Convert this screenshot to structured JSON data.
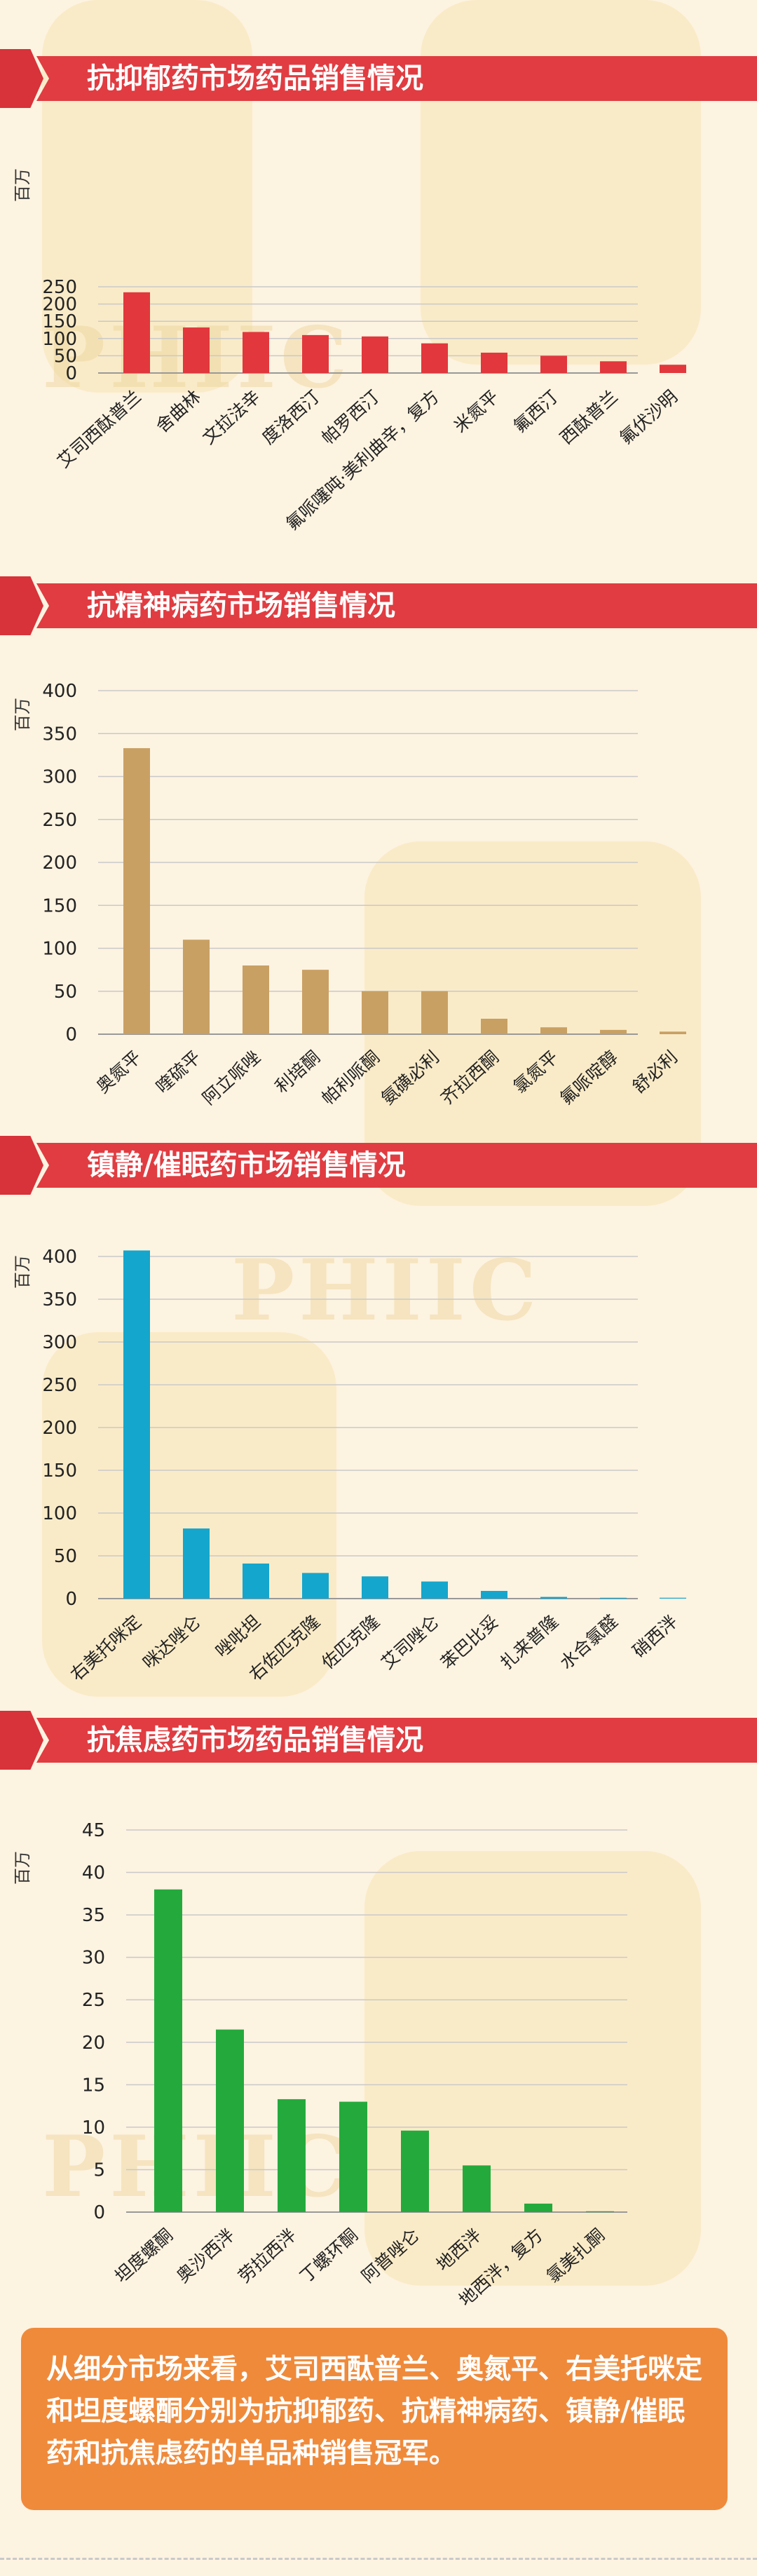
{
  "sections": [
    {
      "title": "抗抑郁药市场药品销售情况",
      "unit": "百万",
      "color": "#e2373c",
      "chart": {
        "type": "bar",
        "categories": [
          "艾司西酞普兰",
          "舍曲林",
          "文拉法辛",
          "度洛西汀",
          "帕罗西汀",
          "氟哌噻吨·美利曲辛，复方",
          "米氮平",
          "氟西汀",
          "西酞普兰",
          "氟伏沙明"
        ],
        "values": [
          234,
          132,
          119,
          110,
          106,
          86,
          59,
          50,
          34,
          24
        ],
        "yticks": [
          0,
          50,
          100,
          150,
          200,
          250
        ],
        "ylim": [
          0,
          250
        ]
      }
    },
    {
      "title": "抗精神病药市场销售情况",
      "unit": "百万",
      "color": "#c9a063",
      "chart": {
        "type": "bar",
        "categories": [
          "奥氮平",
          "喹硫平",
          "阿立哌唑",
          "利培酮",
          "帕利哌酮",
          "氨磺必利",
          "齐拉西酮",
          "氯氮平",
          "氟哌啶醇",
          "舒必利"
        ],
        "values": [
          333,
          110,
          80,
          75,
          50,
          50,
          18,
          8,
          5,
          3
        ],
        "yticks": [
          0,
          50,
          100,
          150,
          200,
          250,
          300,
          350,
          400
        ],
        "ylim": [
          0,
          400
        ]
      }
    },
    {
      "title": "镇静/催眠药市场销售情况",
      "unit": "百万",
      "color": "#14a6cc",
      "chart": {
        "type": "bar",
        "categories": [
          "右美托咪定",
          "咪达唑仑",
          "唑吡坦",
          "右佐匹克隆",
          "佐匹克隆",
          "艾司唑仑",
          "苯巴比妥",
          "扎来普隆",
          "水合氯醛",
          "硝西泮"
        ],
        "values": [
          407,
          82,
          41,
          30,
          26,
          20,
          9,
          2,
          1,
          1
        ],
        "yticks": [
          0,
          50,
          100,
          150,
          200,
          250,
          300,
          350,
          400
        ],
        "ylim": [
          0,
          400
        ]
      }
    },
    {
      "title": "抗焦虑药市场药品销售情况",
      "unit": "百万",
      "color": "#24aa3c",
      "chart": {
        "type": "bar",
        "categories": [
          "坦度螺酮",
          "奥沙西泮",
          "劳拉西泮",
          "丁螺环酮",
          "阿普唑仑",
          "地西泮",
          "地西泮，复方",
          "氯美扎酮"
        ],
        "values": [
          38,
          21.5,
          13.3,
          13,
          9.6,
          5.5,
          1,
          0.1
        ],
        "yticks": [
          0,
          5,
          10,
          15,
          20,
          25,
          30,
          35,
          40,
          45
        ],
        "ylim": [
          0,
          45
        ]
      }
    }
  ],
  "summary": "从细分市场来看，艾司西酞普兰、奥氮平、右美托咪定和坦度螺酮分别为抗抑郁药、抗精神病药、镇静/催眠药和抗焦虑药的单品种销售冠军。",
  "chart_data": [
    {
      "type": "bar",
      "title": "抗抑郁药市场药品销售情况",
      "ylabel": "百万",
      "categories": [
        "艾司西酞普兰",
        "舍曲林",
        "文拉法辛",
        "度洛西汀",
        "帕罗西汀",
        "氟哌噻吨·美利曲辛，复方",
        "米氮平",
        "氟西汀",
        "西酞普兰",
        "氟伏沙明"
      ],
      "values": [
        234,
        132,
        119,
        110,
        106,
        86,
        59,
        50,
        34,
        24
      ],
      "ylim": [
        0,
        250
      ]
    },
    {
      "type": "bar",
      "title": "抗精神病药市场销售情况",
      "ylabel": "百万",
      "categories": [
        "奥氮平",
        "喹硫平",
        "阿立哌唑",
        "利培酮",
        "帕利哌酮",
        "氨磺必利",
        "齐拉西酮",
        "氯氮平",
        "氟哌啶醇",
        "舒必利"
      ],
      "values": [
        333,
        110,
        80,
        75,
        50,
        50,
        18,
        8,
        5,
        3
      ],
      "ylim": [
        0,
        400
      ]
    },
    {
      "type": "bar",
      "title": "镇静/催眠药市场销售情况",
      "ylabel": "百万",
      "categories": [
        "右美托咪定",
        "咪达唑仑",
        "唑吡坦",
        "右佐匹克隆",
        "佐匹克隆",
        "艾司唑仑",
        "苯巴比妥",
        "扎来普隆",
        "水合氯醛",
        "硝西泮"
      ],
      "values": [
        407,
        82,
        41,
        30,
        26,
        20,
        9,
        2,
        1,
        1
      ],
      "ylim": [
        0,
        400
      ]
    },
    {
      "type": "bar",
      "title": "抗焦虑药市场药品销售情况",
      "ylabel": "百万",
      "categories": [
        "坦度螺酮",
        "奥沙西泮",
        "劳拉西泮",
        "丁螺环酮",
        "阿普唑仑",
        "地西泮",
        "地西泮，复方",
        "氯美扎酮"
      ],
      "values": [
        38,
        21.5,
        13.3,
        13,
        9.6,
        5.5,
        1,
        0.1
      ],
      "ylim": [
        0,
        45
      ]
    }
  ]
}
